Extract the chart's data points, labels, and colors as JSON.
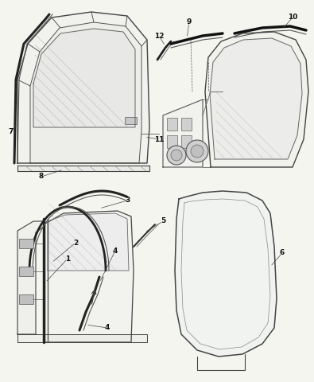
{
  "bg_color": "#f5f5f0",
  "line_color": "#333333",
  "figsize": [
    3.95,
    4.8
  ],
  "dpi": 100
}
